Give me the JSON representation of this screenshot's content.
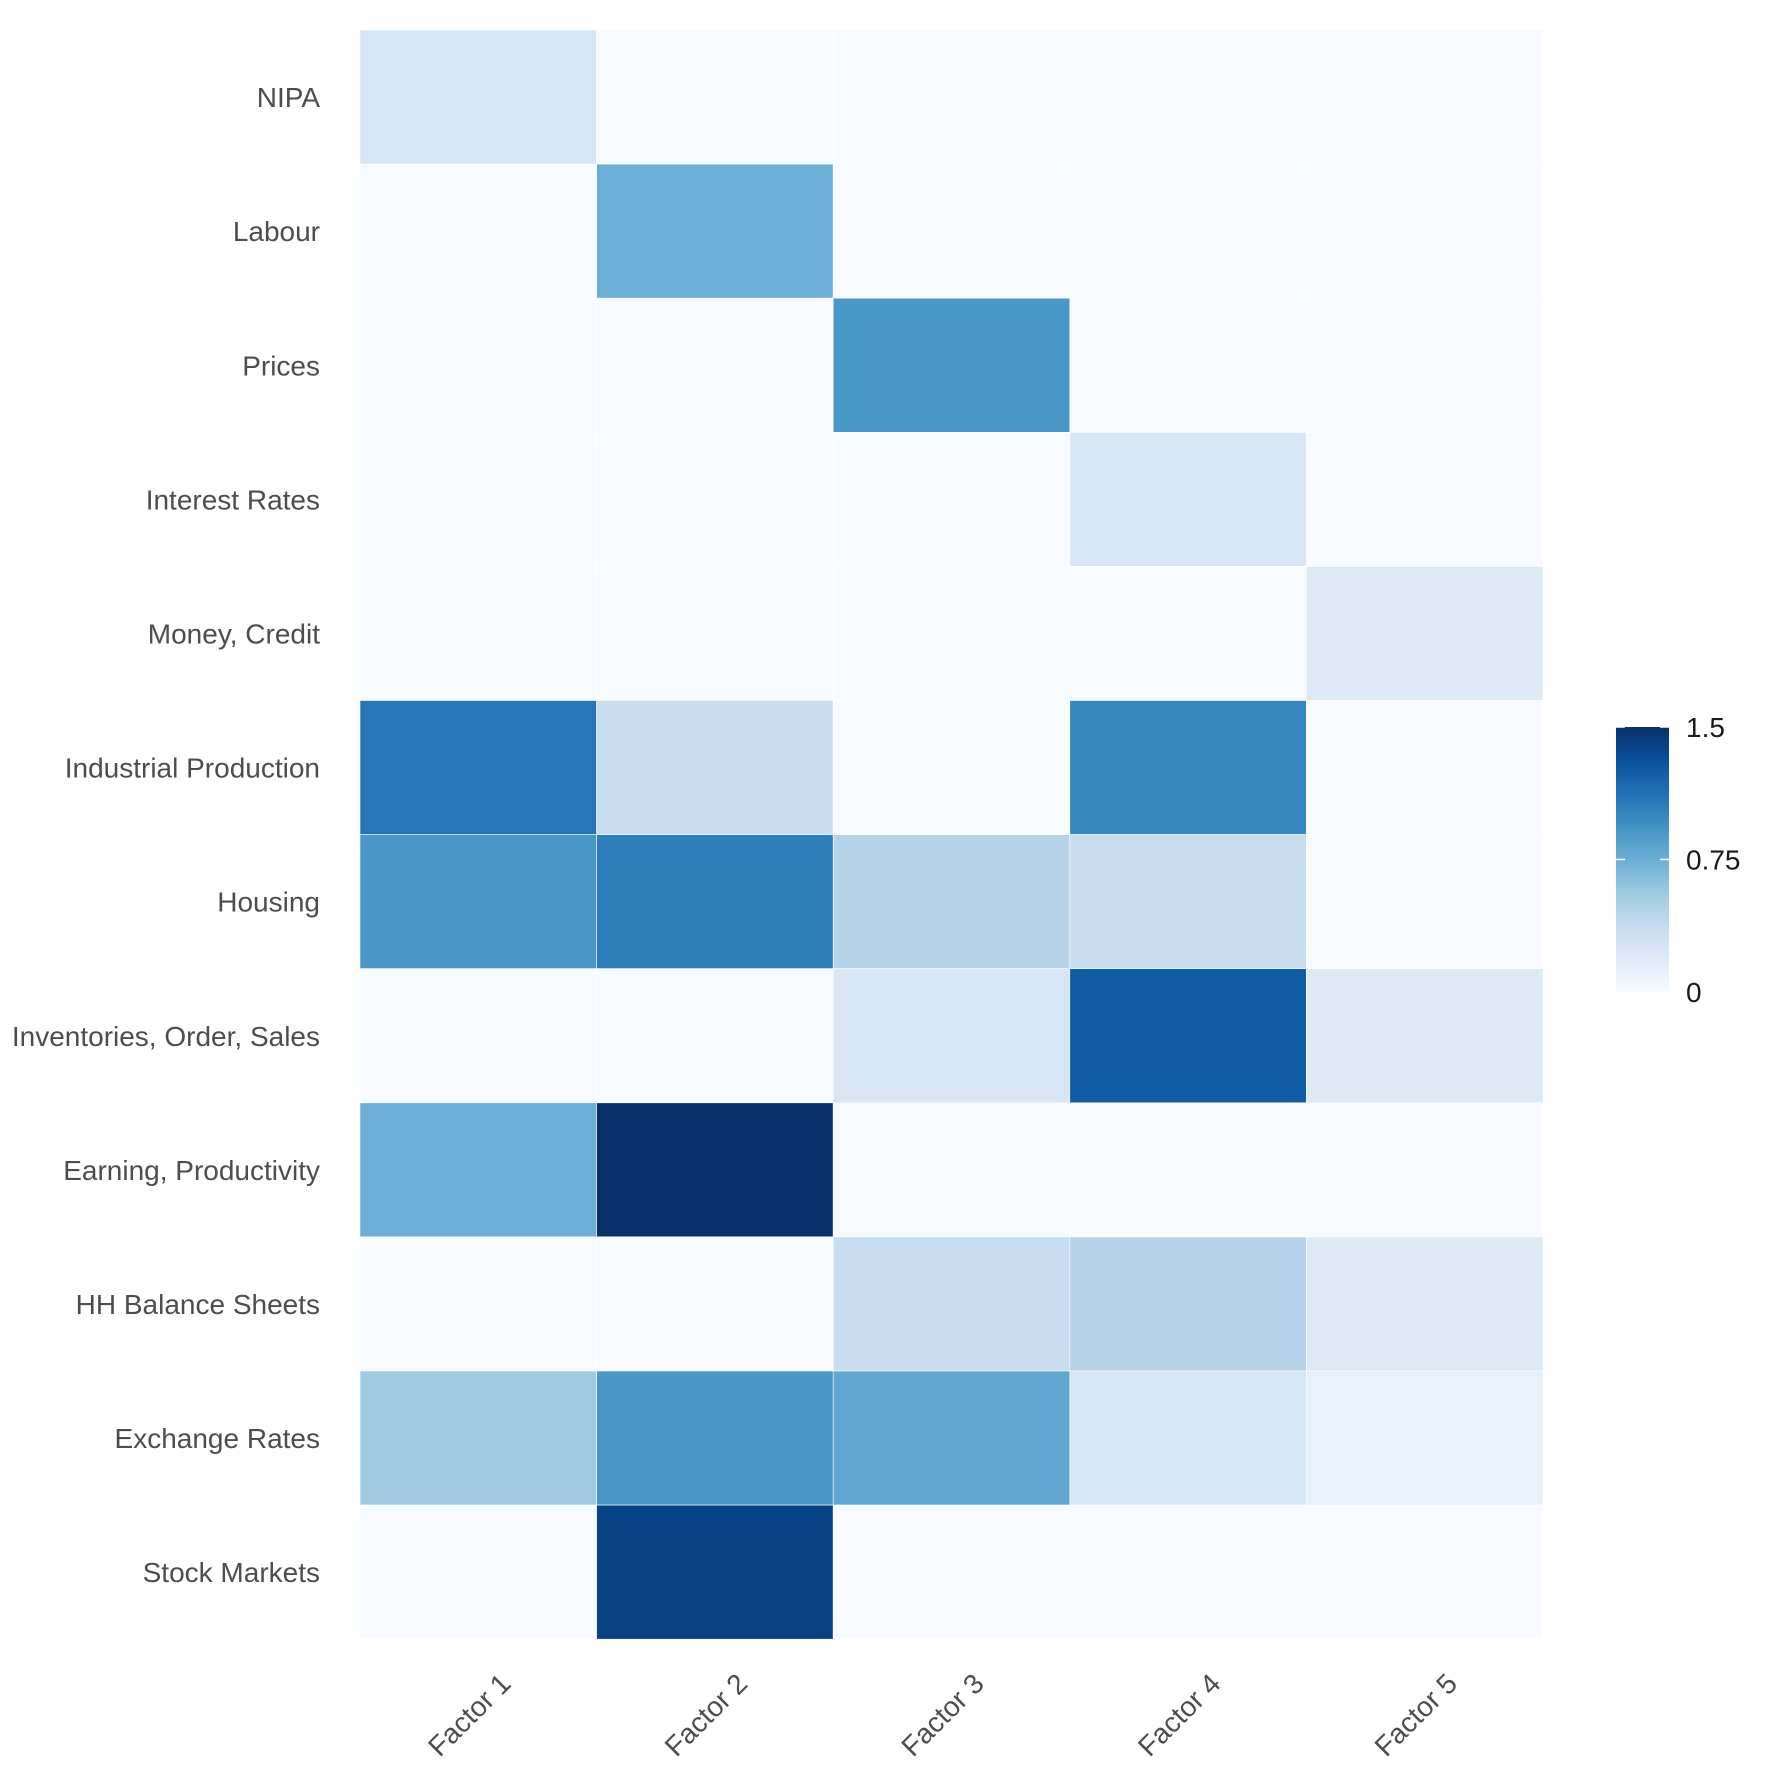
{
  "chart_data": {
    "type": "heatmap",
    "title": "",
    "xlabel": "",
    "ylabel": "",
    "x_categories": [
      "Factor 1",
      "Factor 2",
      "Factor 3",
      "Factor 4",
      "Factor 5"
    ],
    "y_categories": [
      "NIPA",
      "Labour",
      "Prices",
      "Interest Rates",
      "Money, Credit",
      "Industrial Production",
      "Housing",
      "Inventories, Order, Sales",
      "Earning, Productivity",
      "HH Balance Sheets",
      "Exchange Rates",
      "Stock Markets"
    ],
    "values": [
      [
        0.25,
        0.0,
        0.0,
        0.0,
        0.0
      ],
      [
        0.0,
        0.75,
        0.0,
        0.0,
        0.0
      ],
      [
        0.0,
        0.0,
        0.9,
        0.0,
        0.0
      ],
      [
        0.0,
        0.0,
        0.0,
        0.25,
        0.0
      ],
      [
        0.0,
        0.0,
        0.0,
        0.0,
        0.2
      ],
      [
        1.1,
        0.35,
        0.0,
        1.0,
        0.0
      ],
      [
        0.9,
        1.05,
        0.45,
        0.35,
        0.0
      ],
      [
        0.0,
        0.0,
        0.25,
        1.25,
        0.2
      ],
      [
        0.75,
        1.5,
        0.0,
        0.0,
        0.0
      ],
      [
        0.0,
        0.0,
        0.35,
        0.45,
        0.2
      ],
      [
        0.55,
        0.9,
        0.8,
        0.25,
        0.12
      ],
      [
        0.0,
        1.4,
        0.0,
        0.0,
        0.0
      ]
    ],
    "legend": {
      "position": "right",
      "ticks": [
        {
          "value": 0,
          "label": "0"
        },
        {
          "value": 0.75,
          "label": "0.75"
        },
        {
          "value": 1.5,
          "label": "1.5"
        }
      ],
      "min": 0,
      "max": 1.5
    },
    "colorscale": [
      "#f7fbff",
      "#deebf7",
      "#c6dbef",
      "#9ecae1",
      "#6baed6",
      "#4292c6",
      "#2171b5",
      "#08519c",
      "#08306b"
    ],
    "grid": false
  }
}
